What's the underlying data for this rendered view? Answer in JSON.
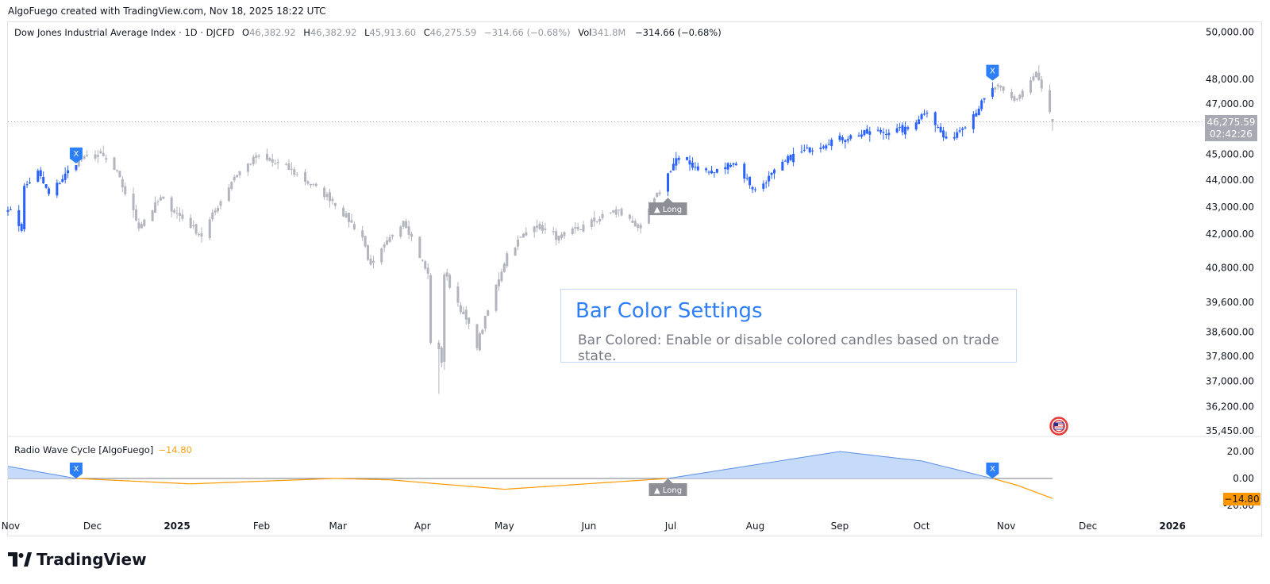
{
  "attribution": "AlgoFuego created with TradingView.com, Nov 18, 2025 18:22 UTC",
  "legend": {
    "title": "Dow Jones Industrial Average Index · 1D · DJCFD",
    "o_key": "O",
    "o_val": "46,382.92",
    "h_key": "H",
    "h_val": "46,382.92",
    "l_key": "L",
    "l_val": "45,913.60",
    "c_key": "C",
    "c_val": "46,275.59",
    "change": "−314.66 (−0.68%)",
    "vol_key": "Vol",
    "vol_val": "341.8M",
    "vol_change": "−314.66 (−0.68%)"
  },
  "oscillator": {
    "name": "Radio Wave Cycle [AlgoFuego]",
    "value": "−14.80"
  },
  "info_box": {
    "title": "Bar Color Settings",
    "text": "Bar Colored: Enable or disable colored candles based on trade state."
  },
  "price_tag": {
    "price": "46,275.59",
    "countdown": "02:42:26"
  },
  "osc_tag": "−14.80",
  "markers": {
    "exit": "X",
    "long": "▲ Long"
  },
  "logo_text": "TradingView",
  "colors": {
    "bull": "#2962ff",
    "neutral": "#b2b5be",
    "oscillator_fill": "#c6dafa",
    "oscillator_line": "#ff9800",
    "accent": "#2d7ff9"
  },
  "chart_data": {
    "type": "candlestick",
    "price_axis_ticks": [
      "50,000.00",
      "48,000.00",
      "47,000.00",
      "45,000.00",
      "44,000.00",
      "43,000.00",
      "42,000.00",
      "40,800.00",
      "39,600.00",
      "38,600.00",
      "37,800.00",
      "37,000.00",
      "36,200.00",
      "35,450.00"
    ],
    "price_axis_scale": "log",
    "osc_axis_ticks": [
      "20.00",
      "0.00",
      "-20.00"
    ],
    "time_axis_ticks": [
      "Nov",
      "Dec",
      "2025",
      "Feb",
      "Mar",
      "Apr",
      "May",
      "Jun",
      "Jul",
      "Aug",
      "Sep",
      "Oct",
      "Nov",
      "Dec",
      "2026"
    ],
    "bold_ticks": [
      "2025",
      "2026"
    ],
    "last_close": 46275.59,
    "oscillator_last": -14.8,
    "signals": [
      {
        "type": "exit",
        "date": "2024-11-25"
      },
      {
        "type": "long",
        "date": "2025-06-30"
      },
      {
        "type": "exit",
        "date": "2025-10-27"
      }
    ],
    "anchors": [
      [
        "2024-10-31",
        42950
      ],
      [
        "2024-11-05",
        42200
      ],
      [
        "2024-11-06",
        43730
      ],
      [
        "2024-11-11",
        44300
      ],
      [
        "2024-11-15",
        43450
      ],
      [
        "2024-11-25",
        44700
      ],
      [
        "2024-12-04",
        45000
      ],
      [
        "2024-12-10",
        44250
      ],
      [
        "2024-12-18",
        42300
      ],
      [
        "2024-12-26",
        43300
      ],
      [
        "2025-01-10",
        41950
      ],
      [
        "2025-01-22",
        44150
      ],
      [
        "2025-01-30",
        44880
      ],
      [
        "2025-02-10",
        44500
      ],
      [
        "2025-02-27",
        43250
      ],
      [
        "2025-03-10",
        41900
      ],
      [
        "2025-03-13",
        40810
      ],
      [
        "2025-03-25",
        42550
      ],
      [
        "2025-04-03",
        40550
      ],
      [
        "2025-04-04",
        38300
      ],
      [
        "2025-04-07",
        37950
      ],
      [
        "2025-04-08",
        37650
      ],
      [
        "2025-04-09",
        40600
      ],
      [
        "2025-04-21",
        38180
      ],
      [
        "2025-05-02",
        41300
      ],
      [
        "2025-05-12",
        42400
      ],
      [
        "2025-05-21",
        41850
      ],
      [
        "2025-06-11",
        42880
      ],
      [
        "2025-06-20",
        42210
      ],
      [
        "2025-07-03",
        44830
      ],
      [
        "2025-07-16",
        44250
      ],
      [
        "2025-07-24",
        44700
      ],
      [
        "2025-08-01",
        43590
      ],
      [
        "2025-08-14",
        44900
      ],
      [
        "2025-08-29",
        45540
      ],
      [
        "2025-09-12",
        45850
      ],
      [
        "2025-09-25",
        45960
      ],
      [
        "2025-10-03",
        46750
      ],
      [
        "2025-10-10",
        45480
      ],
      [
        "2025-10-17",
        46190
      ],
      [
        "2025-10-28",
        47700
      ],
      [
        "2025-11-04",
        47100
      ],
      [
        "2025-11-12",
        48250
      ],
      [
        "2025-11-18",
        46275
      ]
    ],
    "oscillator_anchors": [
      [
        "2024-10-31",
        9
      ],
      [
        "2024-11-25",
        0
      ],
      [
        "2025-01-06",
        -4
      ],
      [
        "2025-02-28",
        0
      ],
      [
        "2025-03-20",
        -1
      ],
      [
        "2025-05-01",
        -8
      ],
      [
        "2025-06-30",
        0
      ],
      [
        "2025-09-01",
        20
      ],
      [
        "2025-10-01",
        13
      ],
      [
        "2025-10-27",
        0
      ],
      [
        "2025-11-05",
        -5
      ],
      [
        "2025-11-18",
        -14.8
      ]
    ]
  }
}
